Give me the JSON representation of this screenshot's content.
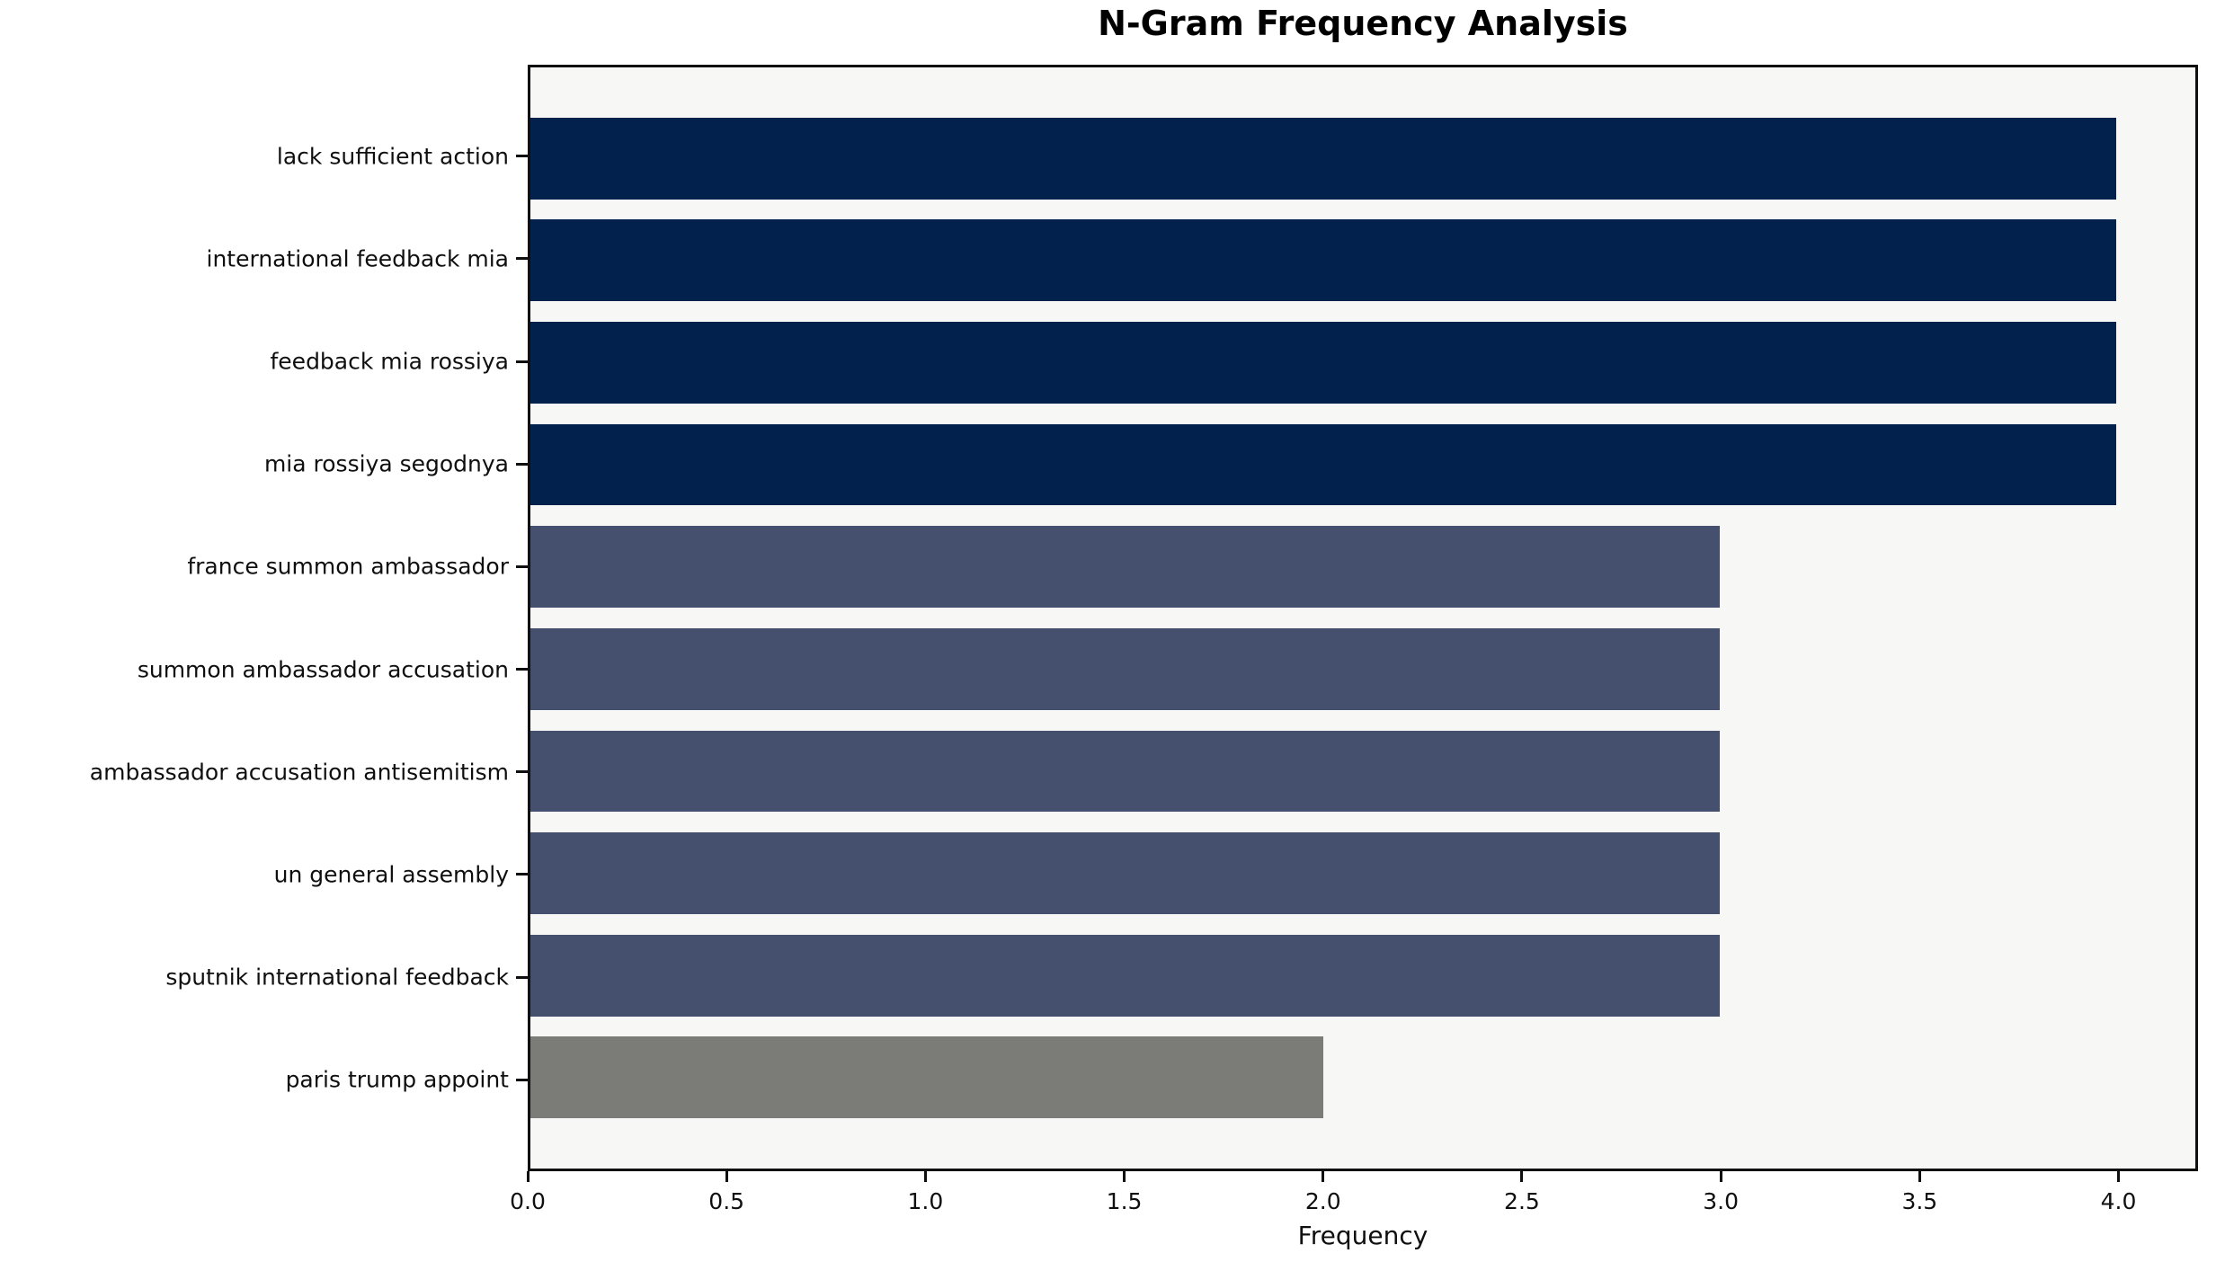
{
  "chart_data": {
    "type": "bar",
    "orientation": "horizontal",
    "title": "N-Gram Frequency Analysis",
    "xlabel": "Frequency",
    "ylabel": "",
    "categories": [
      "lack sufficient action",
      "international feedback mia",
      "feedback mia rossiya",
      "mia rossiya segodnya",
      "france summon ambassador",
      "summon ambassador accusation",
      "ambassador accusation antisemitism",
      "un general assembly",
      "sputnik international feedback",
      "paris trump appoint"
    ],
    "values": [
      4,
      4,
      4,
      4,
      3,
      3,
      3,
      3,
      3,
      2
    ],
    "bar_colors": [
      "#02224d",
      "#02224d",
      "#02224d",
      "#02224d",
      "#454f6e",
      "#454f6e",
      "#454f6e",
      "#454f6e",
      "#454f6e",
      "#7b7b78"
    ],
    "xticks": [
      0.0,
      0.5,
      1.0,
      1.5,
      2.0,
      2.5,
      3.0,
      3.5,
      4.0
    ],
    "xtick_labels": [
      "0.0",
      "0.5",
      "1.0",
      "1.5",
      "2.0",
      "2.5",
      "3.0",
      "3.5",
      "4.0"
    ],
    "xlim": [
      0,
      4.2
    ],
    "bar_band_fraction": 0.8,
    "grid": false,
    "legend_position": "none",
    "plot_background": "#f7f7f6",
    "figure_background": "#ffffff",
    "axis_color": "#0f0f0f"
  }
}
